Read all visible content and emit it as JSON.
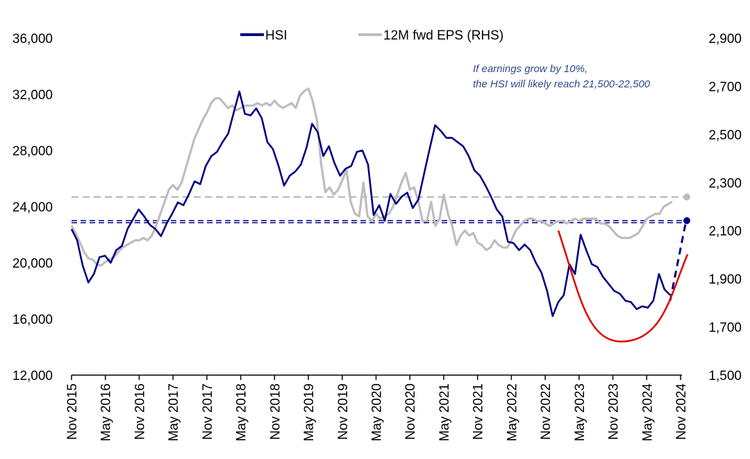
{
  "chart_data": {
    "type": "line",
    "title": "",
    "xlabel": "",
    "ylabel": "",
    "y_left": {
      "ylim": [
        12000,
        36000
      ],
      "ticks": [
        12000,
        16000,
        20000,
        24000,
        28000,
        32000,
        36000
      ],
      "tick_labels": [
        "12,000",
        "16,000",
        "20,000",
        "24,000",
        "28,000",
        "32,000",
        "36,000"
      ]
    },
    "y_right": {
      "ylim": [
        1500,
        2900
      ],
      "ticks": [
        1500,
        1700,
        1900,
        2100,
        2300,
        2500,
        2700,
        2900
      ],
      "tick_labels": [
        "1,500",
        "1,700",
        "1,900",
        "2,100",
        "2,300",
        "2,500",
        "2,700",
        "2,900"
      ]
    },
    "x_tick_labels": [
      "Nov 2015",
      "May 2016",
      "Nov 2016",
      "May 2017",
      "Nov 2017",
      "May 2018",
      "Nov 2018",
      "May 2019",
      "Nov 2019",
      "May 2020",
      "Nov 2020",
      "May 2021",
      "Nov 2021",
      "May 2022",
      "Nov 2022",
      "May 2023",
      "Nov 2023",
      "May 2024",
      "Nov 2024"
    ],
    "legend": [
      "HSI",
      "12M fwd EPS (RHS)"
    ],
    "legend_position": "top-center",
    "grid": false,
    "colors": {
      "hsi": "#000080",
      "eps": "#BDBDBD",
      "curve": "#E00000"
    },
    "series": [
      {
        "name": "HSI",
        "axis": "left",
        "x": [
          0,
          1,
          2,
          3,
          4,
          5,
          6,
          7,
          8,
          9,
          10,
          11,
          12,
          13,
          14,
          15,
          16,
          17,
          18,
          19,
          20,
          21,
          22,
          23,
          24,
          25,
          26,
          27,
          28,
          29,
          30,
          31,
          32,
          33,
          34,
          35,
          36,
          37,
          38,
          39,
          40,
          41,
          42,
          43,
          44,
          45,
          46,
          47,
          48,
          49,
          50,
          51,
          52,
          53,
          54,
          55,
          56,
          57,
          58,
          59,
          60,
          61,
          62,
          63,
          64,
          65,
          66,
          67,
          68,
          69,
          70,
          71,
          72,
          73,
          74,
          75,
          76,
          77,
          78,
          79,
          80,
          81,
          82,
          83,
          84,
          85,
          86,
          87,
          88,
          89,
          90,
          91,
          92,
          93,
          94,
          95,
          96,
          97,
          98,
          99,
          100,
          101,
          102,
          103,
          104,
          105,
          106,
          107
        ],
        "values": [
          22400,
          21600,
          19800,
          18600,
          19200,
          20400,
          20500,
          20000,
          20900,
          21200,
          22400,
          23100,
          23800,
          23300,
          22700,
          22400,
          21900,
          22800,
          23500,
          24300,
          24100,
          24900,
          25800,
          25600,
          26900,
          27600,
          27900,
          28600,
          29200,
          30700,
          32200,
          30600,
          30500,
          31000,
          30300,
          28600,
          28100,
          26900,
          25500,
          26200,
          26500,
          27000,
          28200,
          29900,
          29300,
          27600,
          28300,
          27100,
          26200,
          26700,
          26900,
          27900,
          28000,
          27000,
          23400,
          24100,
          23000,
          24900,
          24200,
          24700,
          25000,
          23900,
          24500,
          26300,
          28100,
          29800,
          29400,
          28900,
          28900,
          28600,
          28300,
          27600,
          26600,
          26200,
          25500,
          24700,
          23800,
          23300,
          21500,
          21400,
          20900,
          21300,
          20900,
          20000,
          19300,
          18000,
          16200,
          17200,
          17700,
          19900,
          19200,
          22000,
          20900,
          19900,
          19700,
          19000,
          18500,
          18000,
          17800,
          17300,
          17200,
          16700,
          16900,
          16800,
          17300,
          19200,
          18100,
          17700
        ]
      },
      {
        "name": "12M fwd EPS (RHS)",
        "axis": "right",
        "x": [
          0,
          1,
          2,
          3,
          4,
          5,
          6,
          7,
          8,
          9,
          10,
          11,
          12,
          13,
          14,
          15,
          16,
          17,
          18,
          19,
          20,
          21,
          22,
          23,
          24,
          25,
          26,
          27,
          28,
          29,
          30,
          31,
          32,
          33,
          34,
          35,
          36,
          37,
          38,
          39,
          40,
          41,
          42,
          43,
          44,
          45,
          46,
          47,
          48,
          49,
          50,
          51,
          52,
          53,
          54,
          55,
          56,
          57,
          58,
          59,
          60,
          61,
          62,
          63,
          64,
          65,
          66,
          67,
          68,
          69,
          70,
          71,
          72,
          73,
          74,
          75,
          76,
          77,
          78,
          79,
          80,
          81,
          82,
          83,
          84,
          85,
          86,
          87,
          88,
          89,
          90,
          91,
          92,
          93,
          94,
          95,
          96,
          97,
          98,
          99,
          100,
          101,
          102,
          103,
          104,
          105,
          106,
          107,
          108,
          109,
          110,
          111,
          112,
          113,
          114,
          115,
          116,
          117,
          118,
          119,
          120,
          121,
          122,
          123,
          124,
          125,
          126,
          127,
          128,
          129,
          130,
          131,
          132,
          133,
          134,
          135,
          136,
          137,
          138,
          139,
          140,
          141,
          142
        ],
        "values": [
          2120,
          2090,
          2050,
          2010,
          1985,
          1980,
          1960,
          1955,
          1970,
          1980,
          1990,
          2010,
          2030,
          2040,
          2050,
          2060,
          2060,
          2070,
          2060,
          2080,
          2120,
          2170,
          2220,
          2270,
          2290,
          2270,
          2300,
          2360,
          2420,
          2480,
          2520,
          2560,
          2590,
          2630,
          2650,
          2650,
          2630,
          2610,
          2620,
          2600,
          2610,
          2620,
          2620,
          2620,
          2630,
          2620,
          2630,
          2620,
          2640,
          2620,
          2610,
          2620,
          2630,
          2610,
          2660,
          2680,
          2690,
          2640,
          2560,
          2380,
          2260,
          2280,
          2250,
          2270,
          2310,
          2350,
          2220,
          2170,
          2160,
          2300,
          2160,
          2140,
          2170,
          2150,
          2160,
          2170,
          2200,
          2250,
          2300,
          2340,
          2270,
          2280,
          2220,
          2140,
          2140,
          2220,
          2120,
          2150,
          2250,
          2170,
          2120,
          2040,
          2080,
          2100,
          2080,
          2090,
          2050,
          2040,
          2020,
          2030,
          2060,
          2040,
          2030,
          2030,
          2060,
          2100,
          2120,
          2140,
          2150,
          2150,
          2140,
          2140,
          2130,
          2120,
          2130,
          2140,
          2140,
          2130,
          2140,
          2150,
          2140,
          2150,
          2150,
          2150,
          2150,
          2130,
          2130,
          2120,
          2100,
          2080,
          2070,
          2070,
          2070,
          2080,
          2090,
          2120,
          2150,
          2160,
          2170,
          2170,
          2200,
          2210,
          2220
        ]
      }
    ],
    "reference_lines": [
      {
        "axis": "left",
        "value": 23000,
        "style": "dashed",
        "color": "#000080",
        "end_marker": true
      },
      {
        "axis": "right",
        "value": 2240,
        "style": "dashed",
        "color": "#BDBDBD",
        "end_marker": true
      }
    ],
    "projection": {
      "axis": "left",
      "from_value": 17300,
      "to_value": 23000,
      "style": "dashed",
      "color": "#000080"
    },
    "curve_annotation": {
      "color": "#E00000",
      "start_value": 22300,
      "min_value": 14400,
      "end_value": 20600
    },
    "annotation": {
      "lines": [
        "If earnings grow by 10%,",
        "the HSI will likely reach 21,500-22,500"
      ],
      "color": "#2E4A8A"
    }
  }
}
